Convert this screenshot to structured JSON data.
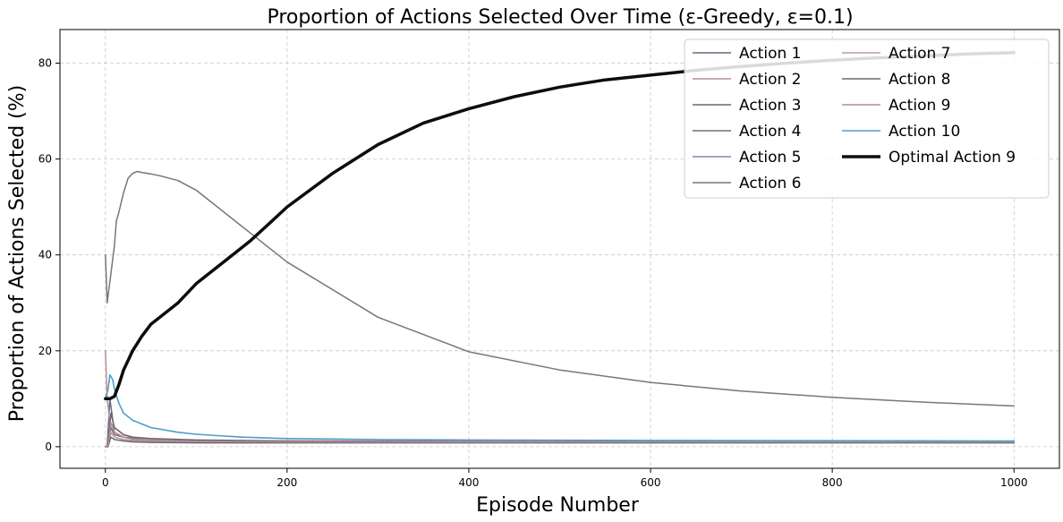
{
  "chart_data": {
    "type": "line",
    "title": "Proportion of Actions Selected Over Time (ε-Greedy, ε=0.1)",
    "xlabel": "Episode Number",
    "ylabel": "Proportion of Actions Selected (%)",
    "xlim": [
      -50,
      1050
    ],
    "ylim": [
      -4.5,
      87
    ],
    "xticks": [
      0,
      200,
      400,
      600,
      800,
      1000
    ],
    "yticks": [
      0,
      20,
      40,
      60,
      80
    ],
    "xtick_labels": [
      "0",
      "200",
      "400",
      "600",
      "800",
      "1000"
    ],
    "ytick_labels": [
      "0",
      "20",
      "40",
      "60",
      "80"
    ],
    "grid": true,
    "legend_position": "top-right",
    "legend_columns": 2,
    "series": [
      {
        "name": "Action 1",
        "color": "#5f6f82",
        "width": 1.5,
        "x": [
          0,
          2,
          5,
          10,
          20,
          30,
          50,
          100,
          200,
          400,
          600,
          800,
          1000
        ],
        "y": [
          0,
          0,
          10,
          3,
          2,
          1.8,
          1.5,
          1.2,
          1.0,
          1.0,
          1.0,
          1.0,
          1.0
        ]
      },
      {
        "name": "Action 2",
        "color": "#b78e9a",
        "width": 1.5,
        "x": [
          0,
          2,
          5,
          10,
          20,
          30,
          50,
          100,
          200,
          400,
          600,
          800,
          1000
        ],
        "y": [
          20,
          10,
          5,
          4,
          2.5,
          2,
          1.5,
          1.2,
          1.2,
          1.1,
          1.0,
          1.0,
          1.0
        ]
      },
      {
        "name": "Action 3",
        "color": "#6e6670",
        "width": 1.5,
        "x": [
          0,
          3,
          6,
          10,
          20,
          30,
          50,
          100,
          200,
          400,
          600,
          800,
          1000
        ],
        "y": [
          0,
          0,
          7,
          4,
          2.5,
          2,
          1.7,
          1.4,
          1.2,
          1.1,
          1.0,
          1.0,
          1.0
        ]
      },
      {
        "name": "Action 4",
        "color": "#7a6c72",
        "width": 1.5,
        "x": [
          0,
          3,
          6,
          10,
          20,
          30,
          50,
          100,
          200,
          400,
          600,
          800,
          1000
        ],
        "y": [
          0,
          0,
          4,
          2.5,
          2,
          1.6,
          1.3,
          1.1,
          1.0,
          1.0,
          1.0,
          1.0,
          1.0
        ]
      },
      {
        "name": "Action 5",
        "color": "#8a84a8",
        "width": 1.5,
        "x": [
          0,
          3,
          6,
          10,
          20,
          30,
          50,
          100,
          200,
          400,
          600,
          800,
          1000
        ],
        "y": [
          0,
          0,
          3,
          2,
          1.5,
          1.3,
          1.1,
          1.0,
          0.9,
          0.9,
          0.9,
          0.9,
          0.9
        ]
      },
      {
        "name": "Action 6",
        "color": "#7e7378",
        "width": 1.5,
        "x": [
          0,
          2,
          4,
          6,
          8,
          10,
          12,
          15,
          20,
          25,
          30,
          35,
          40,
          50,
          60,
          80,
          100,
          150,
          200,
          300,
          400,
          500,
          600,
          700,
          800,
          900,
          1000
        ],
        "y": [
          40,
          30,
          33,
          36,
          39,
          42,
          47,
          49,
          53,
          56,
          57,
          57.4,
          57.2,
          56.9,
          56.5,
          55.5,
          53.5,
          46,
          38.5,
          27,
          19.8,
          16,
          13.4,
          11.6,
          10.3,
          9.3,
          8.5
        ]
      },
      {
        "name": "Action 7",
        "color": "#c49aa2",
        "width": 1.5,
        "x": [
          0,
          3,
          6,
          10,
          20,
          30,
          50,
          100,
          200,
          400,
          600,
          800,
          1000
        ],
        "y": [
          0,
          0,
          3,
          2,
          1.5,
          1.2,
          1.0,
          0.9,
          0.9,
          0.9,
          0.9,
          0.9,
          0.9
        ]
      },
      {
        "name": "Action 8",
        "color": "#6a6a6a",
        "width": 1.5,
        "x": [
          0,
          3,
          6,
          10,
          20,
          30,
          50,
          100,
          200,
          400,
          600,
          800,
          1000
        ],
        "y": [
          0,
          0,
          2,
          1.5,
          1.2,
          1.0,
          0.9,
          0.8,
          0.8,
          0.8,
          0.8,
          0.8,
          0.8
        ]
      },
      {
        "name": "Action 9",
        "color": "#b08e98",
        "width": 1.5,
        "x": [
          0,
          3,
          6,
          10,
          20,
          30,
          50,
          100,
          200,
          400,
          600,
          800,
          1000
        ],
        "y": [
          0,
          0,
          5,
          3,
          2,
          1.6,
          1.3,
          1.1,
          1.0,
          1.0,
          1.0,
          1.0,
          1.0
        ]
      },
      {
        "name": "Action 10",
        "color": "#4f9ec4",
        "width": 1.6,
        "x": [
          0,
          3,
          5,
          8,
          10,
          15,
          20,
          30,
          50,
          80,
          100,
          150,
          200,
          300,
          400,
          600,
          800,
          1000
        ],
        "y": [
          10,
          12,
          15,
          14,
          12,
          9,
          7,
          5.5,
          4,
          3,
          2.6,
          2,
          1.7,
          1.5,
          1.4,
          1.3,
          1.25,
          1.2
        ]
      },
      {
        "name": "Optimal Action 9",
        "color": "#0d0d0d",
        "width": 3.5,
        "x": [
          0,
          5,
          10,
          15,
          20,
          25,
          30,
          40,
          50,
          60,
          80,
          100,
          120,
          140,
          160,
          180,
          200,
          250,
          300,
          350,
          400,
          450,
          500,
          550,
          600,
          650,
          700,
          750,
          800,
          850,
          900,
          950,
          1000
        ],
        "y": [
          10,
          10,
          10.5,
          13,
          16,
          18,
          20,
          23,
          25.5,
          27,
          30,
          34,
          37,
          40,
          43,
          46.5,
          50,
          57,
          63,
          67.5,
          70.5,
          73,
          75,
          76.5,
          77.5,
          78.5,
          79.3,
          80,
          80.6,
          81.1,
          81.5,
          81.9,
          82.2
        ]
      }
    ]
  }
}
